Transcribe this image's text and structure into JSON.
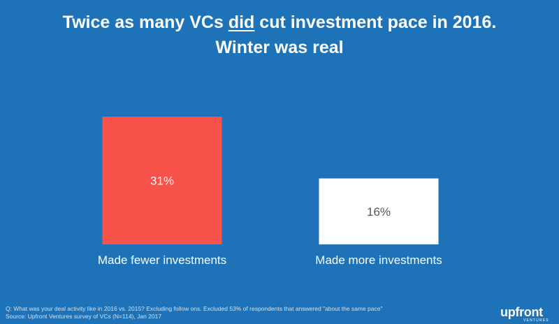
{
  "title": {
    "line1_pre": "Twice as many ",
    "line1_vcs": "VCs",
    "line1_space": " ",
    "line1_did": "did",
    "line1_post": " cut investment pace in 2016.",
    "line2": "Winter was real"
  },
  "chart_data": {
    "type": "bar",
    "categories": [
      "Made fewer investments",
      "Made more investments"
    ],
    "values": [
      31,
      16
    ],
    "value_labels": [
      "31%",
      "16%"
    ],
    "ylim": [
      0,
      31
    ],
    "grid": false,
    "colors": [
      "#f9524a",
      "#ffffff"
    ],
    "label_colors": [
      "#ffffff",
      "#555555"
    ]
  },
  "footnotes": {
    "question": "Q: What was your deal activity like in 2016 vs. 2015? Excluding follow ons. Excluded 53% of respondents that answered \"about the same pace\"",
    "source": "Source: Upfront Ventures survey of VCs (N=114), Jan 2017"
  },
  "logo": {
    "name": "upfront",
    "sub": "VENTURES"
  }
}
